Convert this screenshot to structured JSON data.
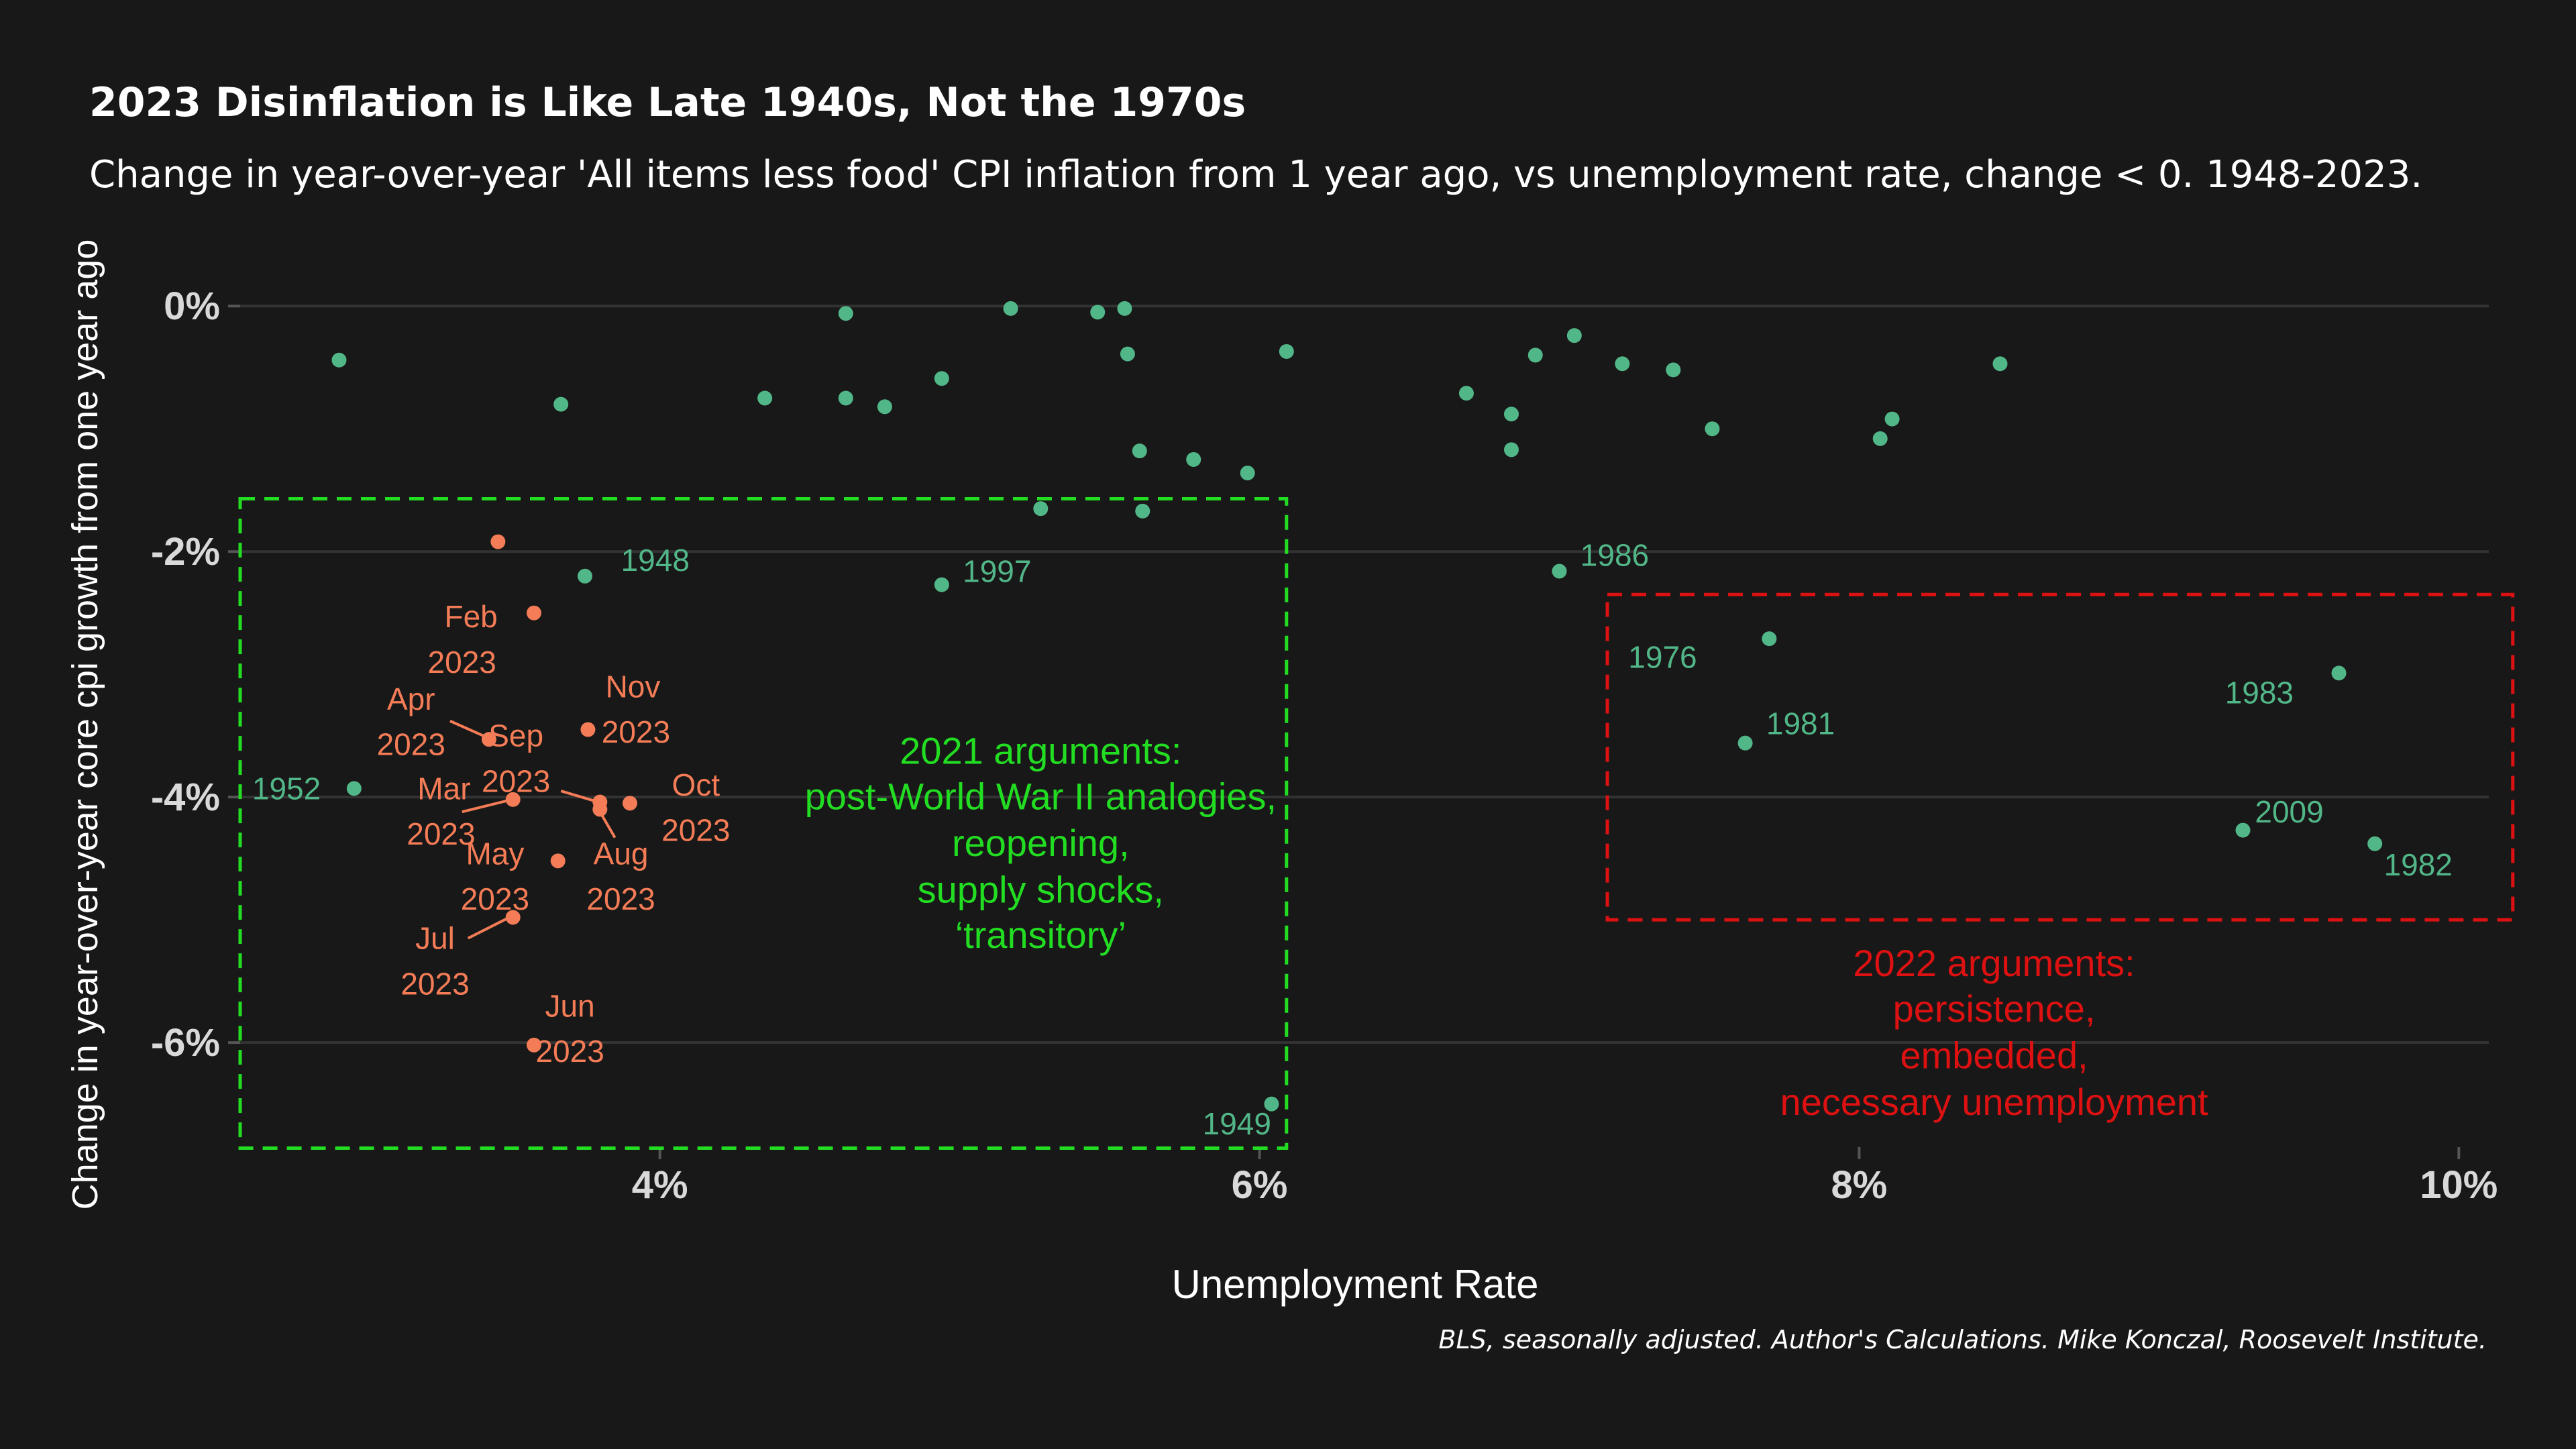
{
  "title": "2023 Disinflation is Like Late 1940s, Not the 1970s",
  "subtitle": "Change in year-over-year 'All items less food' CPI inflation from 1 year ago, vs unemployment rate, change < 0. 1948-2023.",
  "caption": "BLS, seasonally adjusted. Author's Calculations. Mike Konczal, Roosevelt Institute.",
  "colors": {
    "background": "#181818",
    "historical": "#52b788",
    "year2023": "#f47c56",
    "green_box": "#22dd22",
    "red_box": "#dd1111",
    "grid": "#333333",
    "tick_label": "#d9d9d9"
  },
  "chart_data": {
    "type": "scatter",
    "xlabel": "Unemployment Rate",
    "ylabel": "Change in year-over-year core cpi growth from one year ago",
    "xlim": [
      2.6,
      10.1
    ],
    "ylim": [
      -6.95,
      0.28
    ],
    "x_ticks": [
      {
        "value": 4,
        "label": "4%"
      },
      {
        "value": 6,
        "label": "6%"
      },
      {
        "value": 8,
        "label": "8%"
      },
      {
        "value": 10,
        "label": "10%"
      }
    ],
    "y_ticks": [
      {
        "value": 0,
        "label": "0%"
      },
      {
        "value": -2,
        "label": "-2%"
      },
      {
        "value": -4,
        "label": "-4%"
      },
      {
        "value": -6,
        "label": "-6%"
      }
    ],
    "grid": "horizontal",
    "series": [
      {
        "group": "historical",
        "points": [
          {
            "x": 2.93,
            "y": -0.44,
            "label": ""
          },
          {
            "x": 3.67,
            "y": -0.8,
            "label": ""
          },
          {
            "x": 3.75,
            "y": -2.2,
            "label": "1948"
          },
          {
            "x": 2.98,
            "y": -3.93,
            "label": "1952"
          },
          {
            "x": 4.35,
            "y": -0.75,
            "label": ""
          },
          {
            "x": 4.62,
            "y": -0.06,
            "label": ""
          },
          {
            "x": 4.62,
            "y": -0.75,
            "label": ""
          },
          {
            "x": 4.75,
            "y": -0.82,
            "label": ""
          },
          {
            "x": 4.94,
            "y": -0.59,
            "label": ""
          },
          {
            "x": 4.94,
            "y": -2.27,
            "label": "1997"
          },
          {
            "x": 5.17,
            "y": -0.02,
            "label": ""
          },
          {
            "x": 5.27,
            "y": -1.65,
            "label": ""
          },
          {
            "x": 5.46,
            "y": -0.05,
            "label": ""
          },
          {
            "x": 5.55,
            "y": -0.02,
            "label": ""
          },
          {
            "x": 5.56,
            "y": -0.39,
            "label": ""
          },
          {
            "x": 5.6,
            "y": -1.18,
            "label": ""
          },
          {
            "x": 5.61,
            "y": -1.67,
            "label": ""
          },
          {
            "x": 5.78,
            "y": -1.25,
            "label": ""
          },
          {
            "x": 5.96,
            "y": -1.36,
            "label": ""
          },
          {
            "x": 6.04,
            "y": -6.5,
            "label": "1949"
          },
          {
            "x": 6.09,
            "y": -0.37,
            "label": ""
          },
          {
            "x": 6.69,
            "y": -0.71,
            "label": ""
          },
          {
            "x": 6.84,
            "y": -0.88,
            "label": ""
          },
          {
            "x": 6.84,
            "y": -1.17,
            "label": ""
          },
          {
            "x": 6.92,
            "y": -0.4,
            "label": ""
          },
          {
            "x": 7.0,
            "y": -2.16,
            "label": "1986"
          },
          {
            "x": 7.05,
            "y": -0.24,
            "label": ""
          },
          {
            "x": 7.21,
            "y": -0.47,
            "label": ""
          },
          {
            "x": 7.38,
            "y": -0.52,
            "label": ""
          },
          {
            "x": 7.51,
            "y": -1.0,
            "label": ""
          },
          {
            "x": 7.62,
            "y": -3.56,
            "label": "1981"
          },
          {
            "x": 7.7,
            "y": -2.71,
            "label": "1976"
          },
          {
            "x": 8.07,
            "y": -1.08,
            "label": ""
          },
          {
            "x": 8.11,
            "y": -0.92,
            "label": ""
          },
          {
            "x": 8.47,
            "y": -0.47,
            "label": ""
          },
          {
            "x": 9.28,
            "y": -4.27,
            "label": "2009"
          },
          {
            "x": 9.6,
            "y": -2.99,
            "label": "1983"
          },
          {
            "x": 9.72,
            "y": -4.38,
            "label": "1982"
          }
        ]
      },
      {
        "group": "2023",
        "points": [
          {
            "x": 3.46,
            "y": -1.92,
            "label": ""
          },
          {
            "x": 3.58,
            "y": -2.5,
            "label": "Feb 2023"
          },
          {
            "x": 3.43,
            "y": -3.53,
            "label": "Apr 2023"
          },
          {
            "x": 3.76,
            "y": -3.45,
            "label": "Sep 2023"
          },
          {
            "x": 3.8,
            "y": -4.04,
            "label": ""
          },
          {
            "x": 3.8,
            "y": -4.1,
            "label": ""
          },
          {
            "x": 3.9,
            "y": -4.05,
            "label": "Oct 2023"
          },
          {
            "x": 3.51,
            "y": -4.02,
            "label": "Mar 2023"
          },
          {
            "x": 3.66,
            "y": -4.52,
            "label": "May 2023"
          },
          {
            "x": 3.51,
            "y": -4.98,
            "label": "Jul 2023"
          },
          {
            "x": 3.58,
            "y": -6.02,
            "label": "Jun 2023"
          }
        ]
      }
    ],
    "text_labels": [
      {
        "x": 3.87,
        "y": -2.07,
        "text": "1948",
        "anchor": "start",
        "group": "historical"
      },
      {
        "x": 2.64,
        "y": -3.93,
        "text": "1952",
        "anchor": "start",
        "group": "historical"
      },
      {
        "x": 5.01,
        "y": -2.16,
        "text": "1997",
        "anchor": "start",
        "group": "historical"
      },
      {
        "x": 5.81,
        "y": -6.66,
        "text": "1949",
        "anchor": "start",
        "group": "historical"
      },
      {
        "x": 7.07,
        "y": -2.03,
        "text": "1986",
        "anchor": "start",
        "group": "historical"
      },
      {
        "x": 7.23,
        "y": -2.86,
        "text": "1976",
        "anchor": "start",
        "group": "historical"
      },
      {
        "x": 7.69,
        "y": -3.4,
        "text": "1981",
        "anchor": "start",
        "group": "historical"
      },
      {
        "x": 9.22,
        "y": -3.15,
        "text": "1983",
        "anchor": "start",
        "group": "historical"
      },
      {
        "x": 9.32,
        "y": -4.12,
        "text": "2009",
        "anchor": "start",
        "group": "historical"
      },
      {
        "x": 9.75,
        "y": -4.55,
        "text": "1982",
        "anchor": "start",
        "group": "historical"
      },
      {
        "x": 3.37,
        "y": -2.53,
        "text": "Feb",
        "anchor": "middle",
        "group": "2023"
      },
      {
        "x": 3.34,
        "y": -2.9,
        "text": "2023",
        "anchor": "middle",
        "group": "2023"
      },
      {
        "x": 3.17,
        "y": -3.2,
        "text": "Apr",
        "anchor": "middle",
        "group": "2023"
      },
      {
        "x": 3.17,
        "y": -3.57,
        "text": "2023",
        "anchor": "middle",
        "group": "2023"
      },
      {
        "x": 3.52,
        "y": -3.5,
        "text": "Sep",
        "anchor": "middle",
        "group": "2023"
      },
      {
        "x": 3.52,
        "y": -3.87,
        "text": "2023",
        "anchor": "middle",
        "group": "2023"
      },
      {
        "x": 3.91,
        "y": -3.1,
        "text": "Nov",
        "anchor": "middle",
        "group": "2023"
      },
      {
        "x": 3.92,
        "y": -3.47,
        "text": "2023",
        "anchor": "middle",
        "group": "2023"
      },
      {
        "x": 4.12,
        "y": -3.9,
        "text": "Oct",
        "anchor": "middle",
        "group": "2023"
      },
      {
        "x": 4.12,
        "y": -4.27,
        "text": "2023",
        "anchor": "middle",
        "group": "2023"
      },
      {
        "x": 3.28,
        "y": -3.93,
        "text": "Mar",
        "anchor": "middle",
        "group": "2023"
      },
      {
        "x": 3.27,
        "y": -4.3,
        "text": "2023",
        "anchor": "middle",
        "group": "2023"
      },
      {
        "x": 3.45,
        "y": -4.46,
        "text": "May",
        "anchor": "middle",
        "group": "2023"
      },
      {
        "x": 3.45,
        "y": -4.83,
        "text": "2023",
        "anchor": "middle",
        "group": "2023"
      },
      {
        "x": 3.87,
        "y": -4.46,
        "text": "Aug",
        "anchor": "middle",
        "group": "2023"
      },
      {
        "x": 3.87,
        "y": -4.83,
        "text": "2023",
        "anchor": "middle",
        "group": "2023"
      },
      {
        "x": 3.25,
        "y": -5.15,
        "text": "Jul",
        "anchor": "middle",
        "group": "2023"
      },
      {
        "x": 3.25,
        "y": -5.52,
        "text": "2023",
        "anchor": "middle",
        "group": "2023"
      },
      {
        "x": 3.7,
        "y": -5.7,
        "text": "Jun",
        "anchor": "middle",
        "group": "2023"
      },
      {
        "x": 3.7,
        "y": -6.07,
        "text": "2023",
        "anchor": "middle",
        "group": "2023"
      }
    ],
    "connectors": [
      {
        "x1": 3.3,
        "y1": -3.38,
        "x2": 3.42,
        "y2": -3.51
      },
      {
        "x1": 3.34,
        "y1": -4.12,
        "x2": 3.49,
        "y2": -4.03
      },
      {
        "x1": 3.67,
        "y1": -3.95,
        "x2": 3.78,
        "y2": -4.03
      },
      {
        "x1": 3.8,
        "y1": -4.12,
        "x2": 3.85,
        "y2": -4.33
      },
      {
        "x1": 3.36,
        "y1": -5.15,
        "x2": 3.49,
        "y2": -4.99
      }
    ],
    "annotations": [
      {
        "color": "green",
        "box": {
          "x0": 2.6,
          "x1": 6.09,
          "y0": -6.86,
          "y1": -1.57
        },
        "text_x": 5.27,
        "lines": [
          "2021 arguments:",
          "post-World War II analogies,",
          "reopening,",
          "supply shocks,",
          "‘transitory’"
        ],
        "line_y": [
          -3.62,
          -3.99,
          -4.37,
          -4.75,
          -5.12
        ]
      },
      {
        "color": "red",
        "box": {
          "x0": 7.16,
          "x1": 10.18,
          "y0": -5.0,
          "y1": -2.35
        },
        "text_x": 8.45,
        "lines": [
          "2022 arguments:",
          "persistence,",
          "embedded,",
          "necessary unemployment"
        ],
        "line_y": [
          -5.35,
          -5.72,
          -6.1,
          -6.48
        ]
      }
    ]
  }
}
